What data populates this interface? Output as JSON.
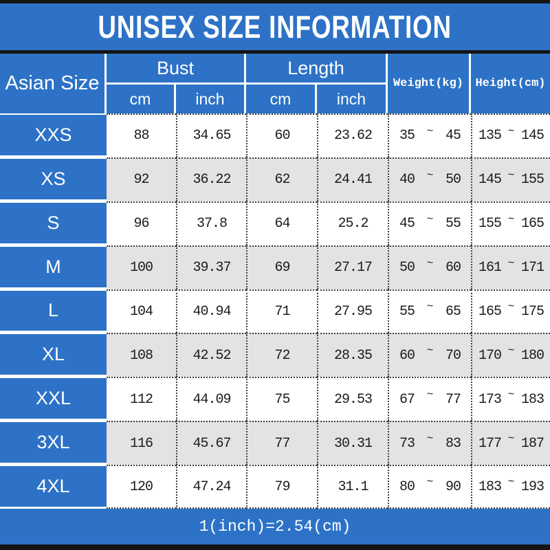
{
  "title": "UNISEX SIZE INFORMATION",
  "table": {
    "headers": {
      "size": "Asian Size",
      "bust": "Bust",
      "length": "Length",
      "weight": "Weight(kg)",
      "height": "Height(cm)",
      "cm": "cm",
      "inch": "inch"
    },
    "tilde": "~",
    "rows": [
      {
        "size": "XXS",
        "bust_cm": "88",
        "bust_inch": "34.65",
        "length_cm": "60",
        "length_inch": "23.62",
        "weight_min": "35",
        "weight_max": "45",
        "height_min": "135",
        "height_max": "145"
      },
      {
        "size": "XS",
        "bust_cm": "92",
        "bust_inch": "36.22",
        "length_cm": "62",
        "length_inch": "24.41",
        "weight_min": "40",
        "weight_max": "50",
        "height_min": "145",
        "height_max": "155"
      },
      {
        "size": "S",
        "bust_cm": "96",
        "bust_inch": "37.8",
        "length_cm": "64",
        "length_inch": "25.2",
        "weight_min": "45",
        "weight_max": "55",
        "height_min": "155",
        "height_max": "165"
      },
      {
        "size": "M",
        "bust_cm": "100",
        "bust_inch": "39.37",
        "length_cm": "69",
        "length_inch": "27.17",
        "weight_min": "50",
        "weight_max": "60",
        "height_min": "161",
        "height_max": "171"
      },
      {
        "size": "L",
        "bust_cm": "104",
        "bust_inch": "40.94",
        "length_cm": "71",
        "length_inch": "27.95",
        "weight_min": "55",
        "weight_max": "65",
        "height_min": "165",
        "height_max": "175"
      },
      {
        "size": "XL",
        "bust_cm": "108",
        "bust_inch": "42.52",
        "length_cm": "72",
        "length_inch": "28.35",
        "weight_min": "60",
        "weight_max": "70",
        "height_min": "170",
        "height_max": "180"
      },
      {
        "size": "XXL",
        "bust_cm": "112",
        "bust_inch": "44.09",
        "length_cm": "75",
        "length_inch": "29.53",
        "weight_min": "67",
        "weight_max": "77",
        "height_min": "173",
        "height_max": "183"
      },
      {
        "size": "3XL",
        "bust_cm": "116",
        "bust_inch": "45.67",
        "length_cm": "77",
        "length_inch": "30.31",
        "weight_min": "73",
        "weight_max": "83",
        "height_min": "177",
        "height_max": "187"
      },
      {
        "size": "4XL",
        "bust_cm": "120",
        "bust_inch": "47.24",
        "length_cm": "79",
        "length_inch": "31.1",
        "weight_min": "80",
        "weight_max": "90",
        "height_min": "183",
        "height_max": "193"
      }
    ]
  },
  "footer": {
    "note": "1(inch)=2.54(cm)"
  },
  "colors": {
    "accent_blue": "#2d72c6",
    "alt_row_gray": "#e4e2e2",
    "border_black": "#141414",
    "text_dark": "#1c1c1c",
    "text_white": "#ffffff"
  },
  "chart_data": {
    "type": "table",
    "title": "UNISEX SIZE INFORMATION",
    "columns": [
      "Asian Size",
      "Bust cm",
      "Bust inch",
      "Length cm",
      "Length inch",
      "Weight(kg)",
      "Height(cm)"
    ],
    "rows": [
      [
        "XXS",
        88,
        34.65,
        60,
        23.62,
        "35~45",
        "135~145"
      ],
      [
        "XS",
        92,
        36.22,
        62,
        24.41,
        "40~50",
        "145~155"
      ],
      [
        "S",
        96,
        37.8,
        64,
        25.2,
        "45~55",
        "155~165"
      ],
      [
        "M",
        100,
        39.37,
        69,
        27.17,
        "50~60",
        "161~171"
      ],
      [
        "L",
        104,
        40.94,
        71,
        27.95,
        "55~65",
        "165~175"
      ],
      [
        "XL",
        108,
        42.52,
        72,
        28.35,
        "60~70",
        "170~180"
      ],
      [
        "XXL",
        112,
        44.09,
        75,
        29.53,
        "67~77",
        "173~183"
      ],
      [
        "3XL",
        116,
        45.67,
        77,
        30.31,
        "73~83",
        "177~187"
      ],
      [
        "4XL",
        120,
        47.24,
        79,
        31.1,
        "80~90",
        "183~193"
      ]
    ],
    "footnote": "1(inch)=2.54(cm)",
    "layout": "size chart table; blue header/size column, alternating white-gray data rows, dotted cell separators"
  }
}
